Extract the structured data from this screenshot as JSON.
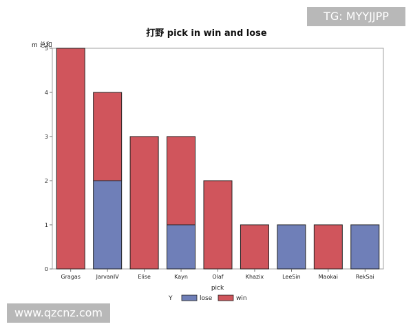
{
  "watermarks": {
    "top_right": "TG: MYYJJPP",
    "bottom_left": "www.qzcnz.com"
  },
  "colors": {
    "lose": "#6f7fb8",
    "win": "#d0555c",
    "frame": "#a0a0a0",
    "bar_outline": "#222222"
  },
  "chart_data": {
    "type": "bar",
    "stacked": true,
    "title": "打野 pick in win and lose",
    "xlabel": "pick",
    "ylabel": "m 总和",
    "categories": [
      "Gragas",
      "JarvanIV",
      "Elise",
      "Kayn",
      "Olaf",
      "Khazix",
      "LeeSin",
      "Maokai",
      "RekSai"
    ],
    "series": [
      {
        "name": "lose",
        "values": [
          0,
          2,
          0,
          1,
          0,
          0,
          1,
          0,
          1
        ]
      },
      {
        "name": "win",
        "values": [
          5,
          2,
          3,
          2,
          2,
          1,
          0,
          1,
          0
        ]
      }
    ],
    "ylim": [
      0,
      5
    ],
    "yticks": [
      "0",
      "1",
      "2",
      "3",
      "4",
      "5"
    ],
    "grid": false,
    "legend": {
      "title": "Y",
      "placement": "bottom"
    }
  }
}
